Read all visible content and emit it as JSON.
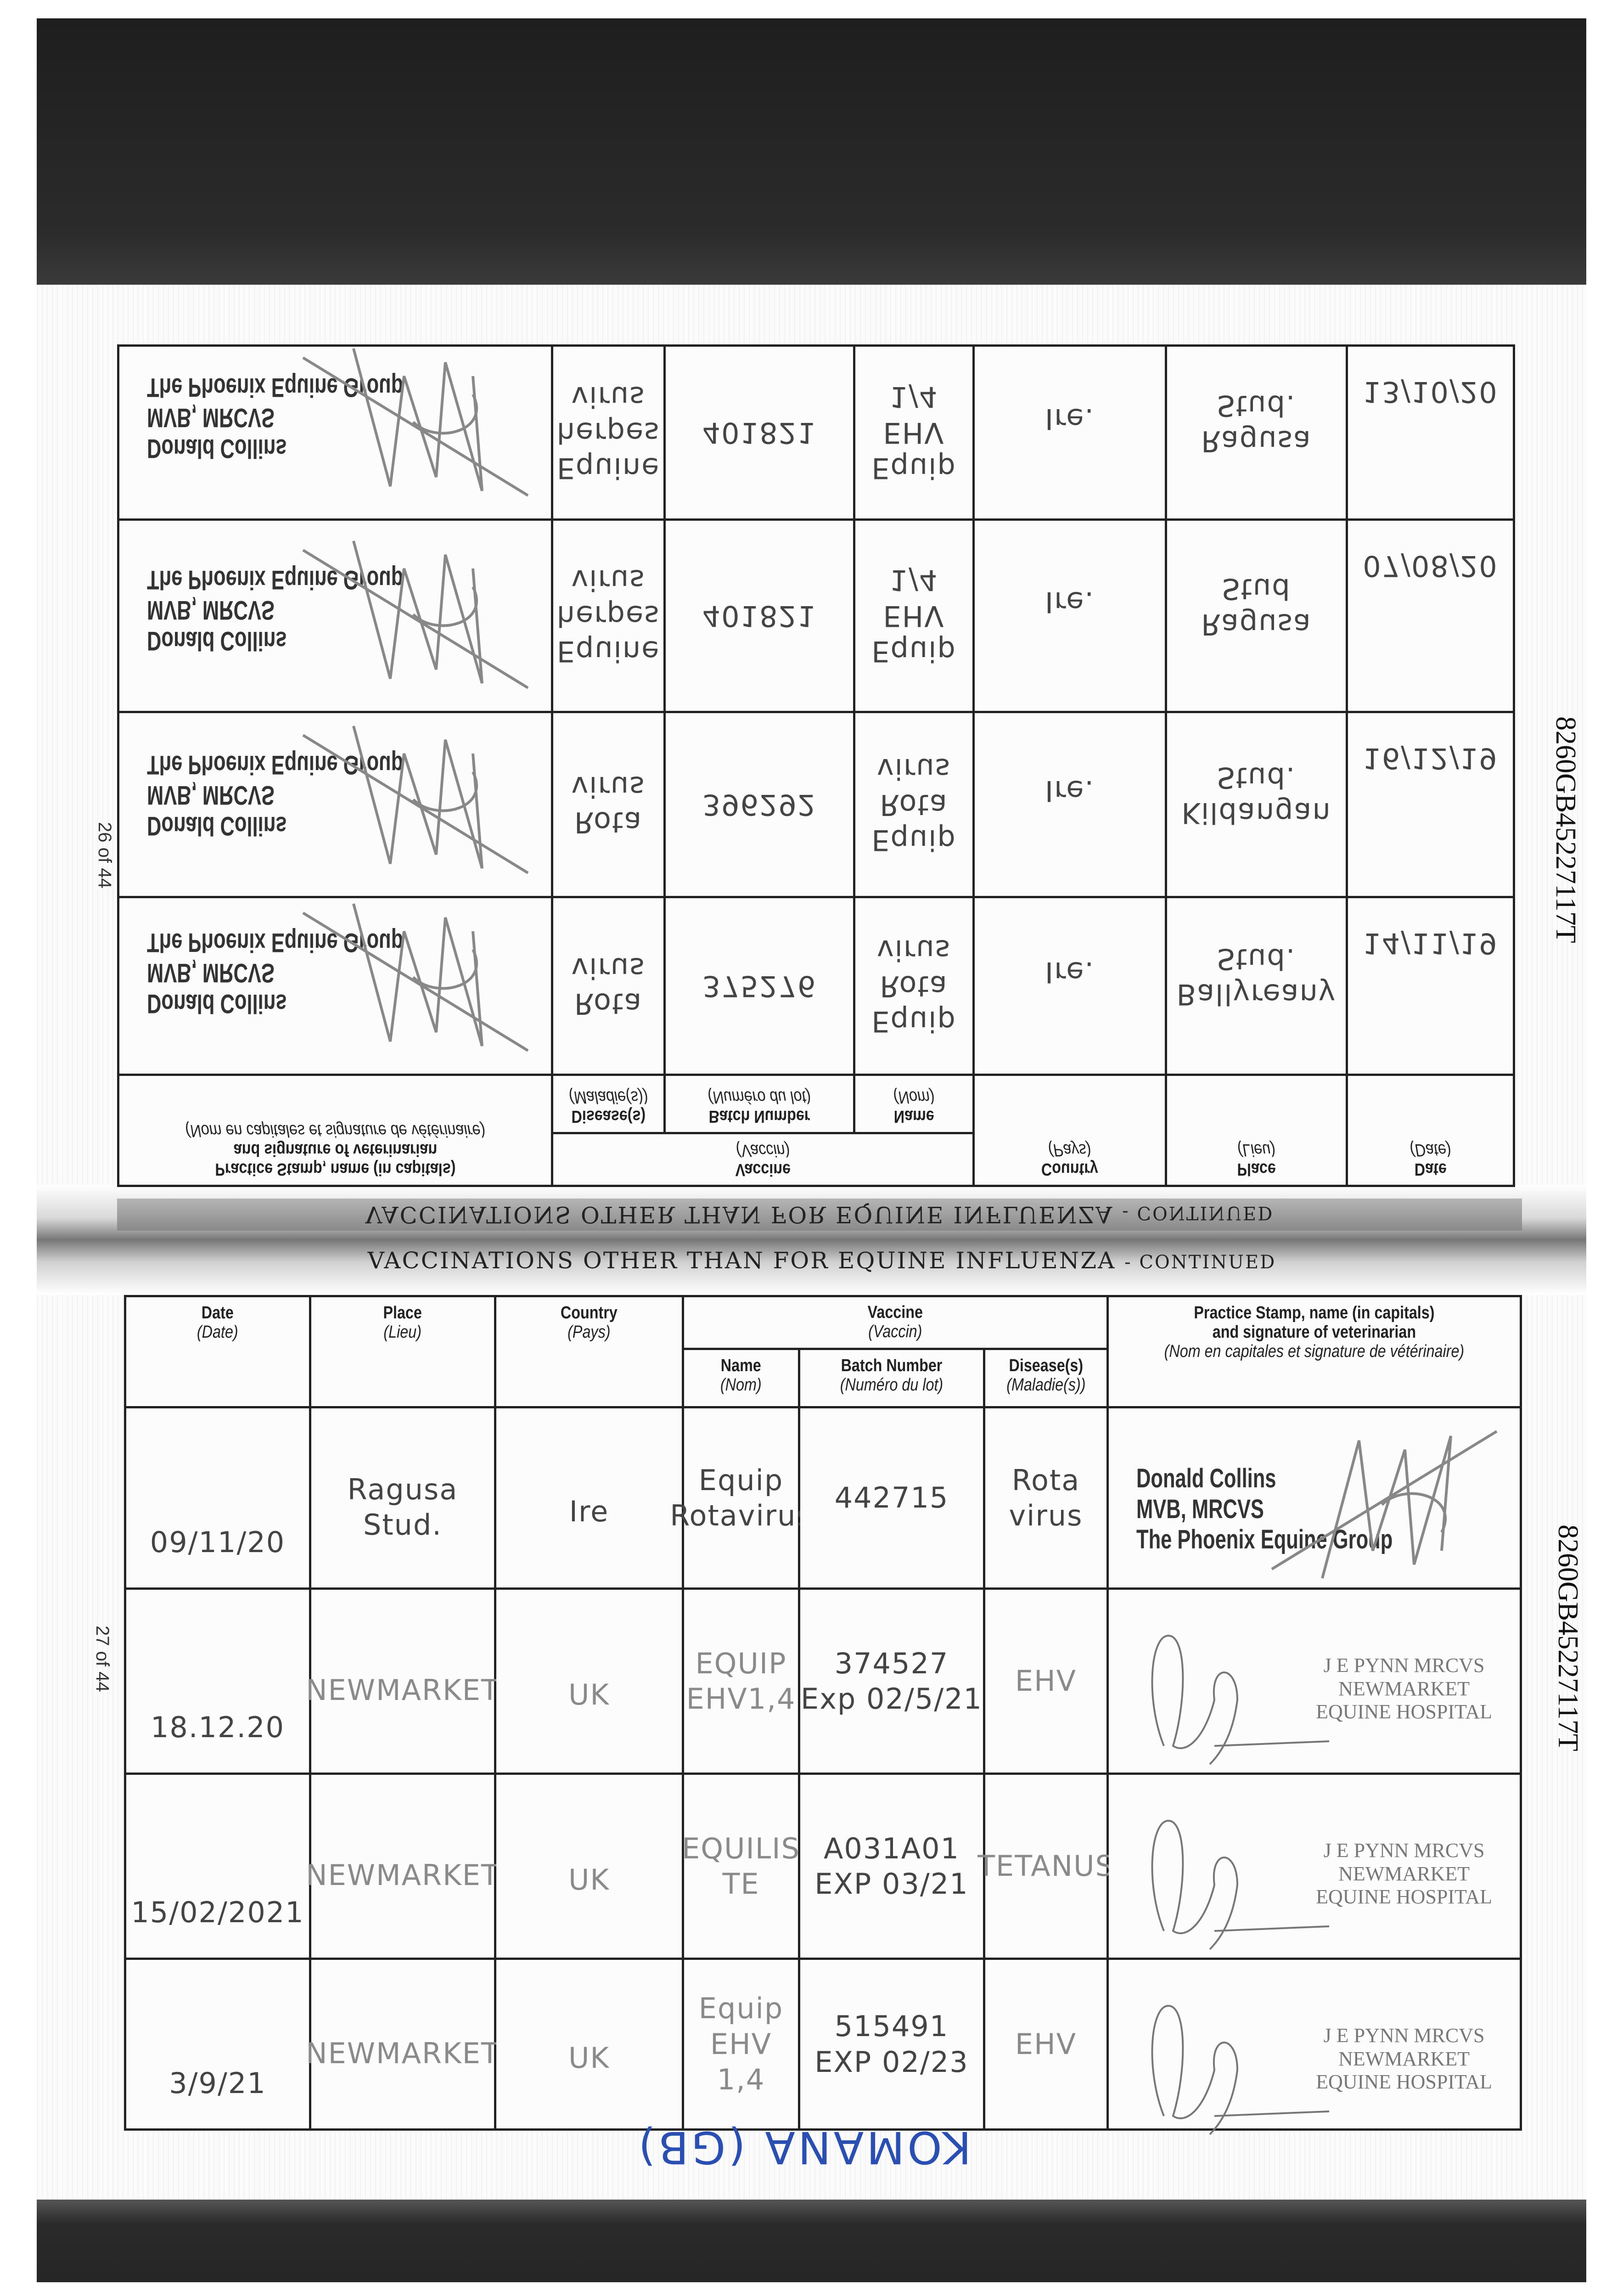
{
  "document": {
    "banner_title": "VACCINATIONS OTHER THAN FOR EQUINE INFLUENZA",
    "banner_suffix": "- CONTINUED",
    "horse_id": "8260GB45227117T",
    "footer_name": "KOMANA (GB)"
  },
  "headers": {
    "date": "Date",
    "date_fr": "(Date)",
    "place": "Place",
    "place_fr": "(Lieu)",
    "country": "Country",
    "country_fr": "(Pays)",
    "vaccine": "Vaccine",
    "vaccine_fr": "(Vaccin)",
    "name": "Name",
    "name_fr": "(Nom)",
    "batch": "Batch Number",
    "batch_fr": "(Numéro du lot)",
    "disease": "Disease(s)",
    "disease_fr": "(Maladie(s))",
    "stamp": "Practice Stamp, name (in capitals)",
    "stamp2": "and signature of veterinarian",
    "stamp_fr": "(Nom en capitales et signature de vétérinaire)"
  },
  "stamps": {
    "collins": [
      "Donald Collins",
      "MVB, MRCVS",
      "The Phoenix Equine Group"
    ],
    "pynn": [
      "J E PYNN MRCVS",
      "NEWMARKET",
      "EQUINE HOSPITAL"
    ]
  },
  "left_page": {
    "page_number": "26 of 44",
    "orientation": "mirrored upside-down",
    "rows": [
      {
        "date": "14/11/19",
        "place": [
          "Ballyreany",
          "Stud."
        ],
        "country": "Ire.",
        "name": [
          "Equip",
          "Rota",
          "virus"
        ],
        "batch": [
          "375276"
        ],
        "disease": [
          "Rota",
          "virus"
        ],
        "stamp": "collins"
      },
      {
        "date": "16/12/19",
        "place": [
          "Kildangan",
          "Stud."
        ],
        "country": "Ire.",
        "name": [
          "Equip",
          "Rota",
          "virus"
        ],
        "batch": [
          "396292"
        ],
        "disease": [
          "Rota",
          "virus"
        ],
        "stamp": "collins"
      },
      {
        "date": "07/08/20",
        "place": [
          "Ragusa",
          "Stud"
        ],
        "country": "Ire.",
        "name": [
          "Equip",
          "EHV",
          "1/4"
        ],
        "batch": [
          "401821"
        ],
        "disease": [
          "Equine",
          "herpes",
          "virus"
        ],
        "stamp": "collins"
      },
      {
        "date": "13/10/20",
        "place": [
          "Ragusa",
          "Stud."
        ],
        "country": "Ire.",
        "name": [
          "Equip",
          "EHV",
          "1/4"
        ],
        "batch": [
          "401821"
        ],
        "disease": [
          "Equine",
          "herpes",
          "virus"
        ],
        "stamp": "collins"
      }
    ]
  },
  "right_page": {
    "page_number": "27 of 44",
    "rows": [
      {
        "date": "09/11/20",
        "place": [
          "Ragusa",
          "Stud."
        ],
        "country": "Ire",
        "name": [
          "Equip",
          "Rotavirus"
        ],
        "batch": [
          "442715"
        ],
        "disease": [
          "Rota",
          "virus"
        ],
        "stamp": "collins"
      },
      {
        "date": "18.12.20",
        "place": [
          "NEWMARKET"
        ],
        "country": "UK",
        "name": [
          "EQUIP EHV1,4"
        ],
        "batch": [
          "374527",
          "Exp 02/5/21"
        ],
        "disease": [
          "EHV"
        ],
        "stamp": "pynn"
      },
      {
        "date": "15/02/2021",
        "place": [
          "NEWMARKET"
        ],
        "country": "UK",
        "name": [
          "EQUILIS",
          "TE"
        ],
        "batch": [
          "A031A01",
          "EXP 03/21"
        ],
        "disease": [
          "TETANUS"
        ],
        "stamp": "pynn"
      },
      {
        "date": "3/9/21",
        "place": [
          "NEWMARKET"
        ],
        "country": "UK",
        "name": [
          "Equip",
          "EHV",
          "1,4"
        ],
        "batch": [
          "515491",
          "EXP 02/23"
        ],
        "disease": [
          "EHV"
        ],
        "stamp": "pynn"
      }
    ]
  }
}
